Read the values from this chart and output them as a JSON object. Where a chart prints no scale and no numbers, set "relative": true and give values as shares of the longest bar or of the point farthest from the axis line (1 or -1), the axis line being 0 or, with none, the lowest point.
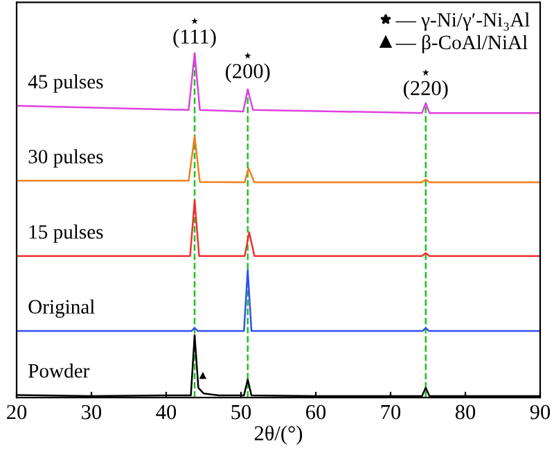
{
  "chart_data": {
    "type": "line",
    "relative": true,
    "xlabel": "2θ/(°)",
    "xlim": [
      20,
      90
    ],
    "xticks": [
      20,
      30,
      40,
      50,
      60,
      70,
      80,
      90
    ],
    "grid": false,
    "legend": "top right",
    "marker": "none",
    "series": [
      {
        "name": "45 pulses",
        "color": "#e040e0",
        "x": [
          20,
          35,
          43.0,
          43.8,
          44.5,
          50.3,
          50.9,
          51.6,
          74.2,
          74.7,
          75.2,
          90
        ],
        "values": [
          0.775,
          0.768,
          0.764,
          0.915,
          0.764,
          0.76,
          0.819,
          0.764,
          0.756,
          0.782,
          0.756,
          0.756
        ]
      },
      {
        "name": "30 pulses",
        "color": "#f07f20",
        "x": [
          20,
          43.0,
          43.8,
          44.5,
          50.5,
          51.0,
          51.8,
          74.2,
          74.7,
          75.2,
          90
        ],
        "values": [
          0.576,
          0.576,
          0.694,
          0.573,
          0.572,
          0.609,
          0.572,
          0.572,
          0.579,
          0.572,
          0.572
        ]
      },
      {
        "name": "15 pulses",
        "color": "#f03030",
        "x": [
          20,
          43.2,
          43.8,
          44.4,
          50.5,
          51.1,
          51.8,
          74.2,
          74.7,
          75.2,
          90
        ],
        "values": [
          0.376,
          0.376,
          0.524,
          0.376,
          0.376,
          0.439,
          0.376,
          0.376,
          0.384,
          0.376,
          0.376
        ]
      },
      {
        "name": "Original",
        "color": "#3050f0",
        "x": [
          20,
          43.4,
          43.8,
          44.2,
          50.4,
          50.9,
          51.4,
          74.3,
          74.7,
          75.1,
          90
        ],
        "values": [
          0.177,
          0.177,
          0.185,
          0.177,
          0.177,
          0.339,
          0.177,
          0.177,
          0.185,
          0.177,
          0.177
        ]
      },
      {
        "name": "Powder",
        "color": "#000000",
        "x": [
          20,
          30,
          40,
          43.3,
          43.8,
          44.3,
          45,
          47,
          50.4,
          50.9,
          51.4,
          60,
          74.2,
          74.7,
          75.2,
          90
        ],
        "values": [
          0.007,
          0.004,
          0.006,
          0.006,
          0.166,
          0.026,
          0.011,
          0.006,
          0.006,
          0.048,
          0.006,
          0.004,
          0.004,
          0.026,
          0.004,
          0.004
        ]
      },
      {
        "type": "scatter",
        "name": "— γ-Ni/γ′-Ni₃Al",
        "marker": "star",
        "color": "#000000",
        "x": [
          43.8,
          50.9,
          74.7
        ],
        "values": [
          1.0,
          0.908,
          0.863
        ]
      },
      {
        "type": "scatter",
        "name": "— β-CoAl/NiAl",
        "marker": "triangle",
        "color": "#000000",
        "x": [
          44.9
        ],
        "values": [
          0.059
        ]
      }
    ],
    "ref_lines": [
      {
        "axis": "x",
        "value": 43.8,
        "color": "#20c020",
        "line_style": "dashed"
      },
      {
        "axis": "x",
        "value": 50.9,
        "color": "#20c020",
        "line_style": "dashed"
      },
      {
        "axis": "x",
        "value": 74.7,
        "color": "#20c020",
        "line_style": "dashed"
      }
    ],
    "annotations": [
      {
        "text": "(111)",
        "x": 43.8,
        "y": 1.0
      },
      {
        "text": "(200)",
        "x": 50.9,
        "y": 0.908
      },
      {
        "text": "(220)",
        "x": 74.7,
        "y": 0.863
      }
    ]
  }
}
